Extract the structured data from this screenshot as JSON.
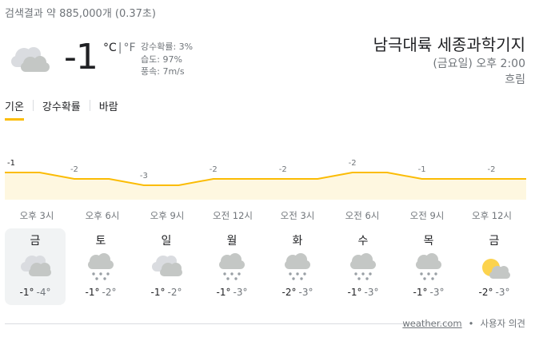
{
  "result_stats": "검색결과 약 885,000개 (0.37초)",
  "current": {
    "icon": "cloudy-icon",
    "temperature": "-1",
    "unit_c": "°C",
    "unit_sep": "|",
    "unit_f": "°F",
    "precipitation": "강수확률: 3%",
    "humidity": "습도: 97%",
    "wind": "풍속: 7m/s"
  },
  "location": {
    "name": "남극대륙 세종과학기지",
    "datetime": "(금요일) 오후 2:00",
    "condition": "흐림"
  },
  "tabs": [
    {
      "label": "기온",
      "active": true
    },
    {
      "label": "강수확률",
      "active": false
    },
    {
      "label": "바람",
      "active": false
    }
  ],
  "chart_data": {
    "type": "area",
    "points": [
      -1,
      -1,
      -2,
      -2,
      -3,
      -3,
      -2,
      -2,
      -2,
      -2,
      -1,
      -1,
      -2,
      -2,
      -2,
      -2
    ],
    "value_labels": [
      "-1",
      "-2",
      "-3",
      "-2",
      "-2",
      "-2",
      "-1",
      "-2"
    ],
    "label_indices": [
      0,
      2,
      4,
      6,
      8,
      10,
      12,
      14
    ],
    "x_labels": [
      "오후 3시",
      "오후 6시",
      "오후 9시",
      "오전 12시",
      "오전 3시",
      "오전 6시",
      "오전 9시",
      "오후 12시"
    ],
    "line_color": "#fbbc04",
    "fill_color": "#fef7e0"
  },
  "days": [
    {
      "name": "금",
      "icon": "cloudy-icon",
      "high": "-1°",
      "low": "-4°",
      "selected": true
    },
    {
      "name": "토",
      "icon": "snow-icon",
      "high": "-1°",
      "low": "-2°",
      "selected": false
    },
    {
      "name": "일",
      "icon": "cloudy-icon",
      "high": "-1°",
      "low": "-2°",
      "selected": false
    },
    {
      "name": "월",
      "icon": "snow-icon",
      "high": "-1°",
      "low": "-3°",
      "selected": false
    },
    {
      "name": "화",
      "icon": "snow-icon",
      "high": "-2°",
      "low": "-3°",
      "selected": false
    },
    {
      "name": "수",
      "icon": "snow-icon",
      "high": "-1°",
      "low": "-3°",
      "selected": false
    },
    {
      "name": "목",
      "icon": "snow-icon",
      "high": "-1°",
      "low": "-3°",
      "selected": false
    },
    {
      "name": "금",
      "icon": "partly-cloudy-icon",
      "high": "-2°",
      "low": "-3°",
      "selected": false
    }
  ],
  "footer": {
    "source": "weather.com",
    "separator": "•",
    "feedback": "사용자 의견"
  }
}
